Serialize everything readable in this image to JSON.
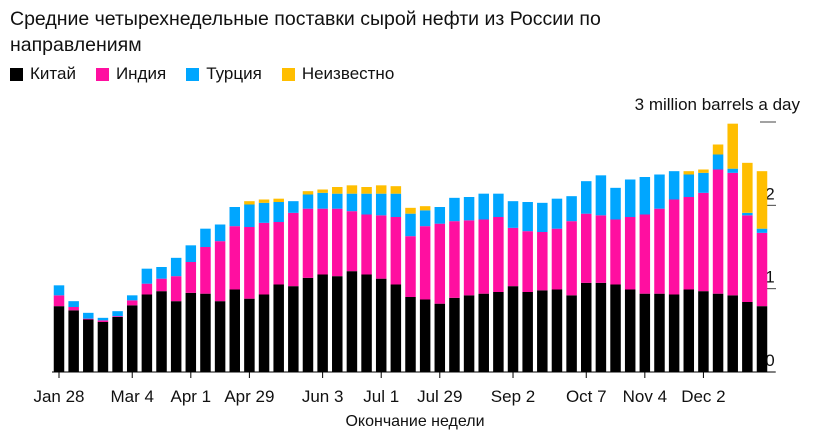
{
  "chart_data": {
    "type": "bar",
    "stacked": true,
    "title": "Средние четырехнедельные поставки сырой нефти из России по направлениям",
    "unit_label": "3 million barrels a day",
    "xlabel": "Окончание недели",
    "ylabel": "",
    "ylim": [
      0,
      3
    ],
    "yticks": [
      {
        "value": 0,
        "label": "0"
      },
      {
        "value": 1,
        "label": "1"
      },
      {
        "value": 2,
        "label": "2"
      },
      {
        "value": 3,
        "label": ""
      }
    ],
    "x_tick_labels": [
      {
        "index": 0,
        "label": "Jan 28"
      },
      {
        "index": 5,
        "label": "Mar 4"
      },
      {
        "index": 9,
        "label": "Apr 1"
      },
      {
        "index": 13,
        "label": "Apr 29"
      },
      {
        "index": 18,
        "label": "Jun 3"
      },
      {
        "index": 22,
        "label": "Jul 1"
      },
      {
        "index": 26,
        "label": "Jul 29"
      },
      {
        "index": 31,
        "label": "Sep 2"
      },
      {
        "index": 36,
        "label": "Oct 7"
      },
      {
        "index": 40,
        "label": "Nov 4"
      },
      {
        "index": 44,
        "label": "Dec 2"
      }
    ],
    "series": [
      {
        "name": "Китай",
        "color": "#000000",
        "values": [
          0.79,
          0.74,
          0.63,
          0.6,
          0.66,
          0.8,
          0.93,
          0.97,
          0.85,
          0.95,
          0.94,
          0.85,
          0.99,
          0.88,
          0.93,
          1.05,
          1.03,
          1.13,
          1.17,
          1.15,
          1.21,
          1.17,
          1.12,
          1.05,
          0.9,
          0.87,
          0.82,
          0.89,
          0.92,
          0.94,
          0.96,
          1.03,
          0.96,
          0.98,
          0.99,
          0.92,
          1.07,
          1.07,
          1.05,
          0.99,
          0.94,
          0.94,
          0.93,
          0.99,
          0.97,
          0.94,
          0.92,
          0.84,
          0.79
        ]
      },
      {
        "name": "Индия",
        "color": "#ff0fa0",
        "values": [
          0.13,
          0.04,
          0.01,
          0.02,
          0.01,
          0.06,
          0.13,
          0.15,
          0.3,
          0.37,
          0.56,
          0.72,
          0.76,
          0.86,
          0.86,
          0.75,
          0.88,
          0.83,
          0.79,
          0.81,
          0.72,
          0.72,
          0.76,
          0.81,
          0.73,
          0.88,
          0.96,
          0.92,
          0.9,
          0.89,
          0.9,
          0.7,
          0.73,
          0.7,
          0.73,
          0.89,
          0.83,
          0.81,
          0.78,
          0.87,
          0.95,
          1.02,
          1.14,
          1.11,
          1.18,
          1.49,
          1.47,
          1.04,
          0.88
        ]
      },
      {
        "name": "Турция",
        "color": "#00a6ff",
        "values": [
          0.12,
          0.07,
          0.07,
          0.03,
          0.06,
          0.06,
          0.18,
          0.14,
          0.22,
          0.2,
          0.22,
          0.2,
          0.23,
          0.27,
          0.24,
          0.24,
          0.14,
          0.17,
          0.19,
          0.18,
          0.21,
          0.25,
          0.26,
          0.28,
          0.27,
          0.19,
          0.2,
          0.28,
          0.28,
          0.31,
          0.28,
          0.32,
          0.35,
          0.35,
          0.36,
          0.3,
          0.39,
          0.48,
          0.38,
          0.45,
          0.45,
          0.41,
          0.34,
          0.27,
          0.24,
          0.18,
          0.05,
          0.03,
          0.05
        ]
      },
      {
        "name": "Неизвестно",
        "color": "#ffbe00",
        "values": [
          0,
          0,
          0,
          0,
          0,
          0,
          0,
          0,
          0,
          0,
          0,
          0,
          0,
          0.04,
          0.04,
          0.04,
          0,
          0.04,
          0.04,
          0.08,
          0.1,
          0.08,
          0.1,
          0.09,
          0.07,
          0.05,
          0,
          0,
          0,
          0,
          0,
          0,
          0,
          0,
          0,
          0,
          0,
          0,
          0,
          0,
          0,
          0,
          0,
          0.04,
          0.04,
          0.12,
          0.54,
          0.6,
          0.69
        ]
      }
    ]
  }
}
